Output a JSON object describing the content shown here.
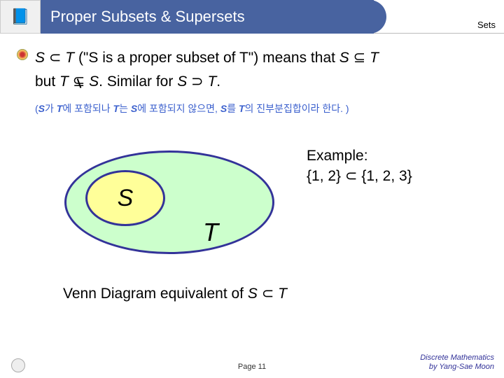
{
  "header": {
    "title": "Proper Subsets & Supersets",
    "section_label": "Sets"
  },
  "body": {
    "line1_a": "S",
    "line1_b": " ⊂ ",
    "line1_c": "T",
    "line1_d": " (\"S is a proper subset of T\") means that ",
    "line1_e": "S",
    "line1_f": " ⊆ ",
    "line1_g": "T",
    "line2_a": "but ",
    "line2_b": "T",
    "line2_c": " ",
    "line2_sub": "⊆",
    "line2_d": " ",
    "line2_e": "S",
    "line2_f": ".  Similar for ",
    "line2_g": "S",
    "line2_h": " ⊃ ",
    "line2_i": "T",
    "line2_j": "."
  },
  "korean": {
    "open": "(",
    "s": "S",
    "t1": "가 ",
    "tt": "T",
    "t2": "에 포함되나 ",
    "tt2": "T",
    "t3": "는 ",
    "s2": "S",
    "t4": "에 포함되지 않으면, ",
    "s3": "S",
    "t5": "를 ",
    "tt3": "T",
    "t6": "의 진부분집합이라 한다. )"
  },
  "diagram": {
    "s_label": "S",
    "t_label": "T",
    "example_l1": "Example:",
    "example_l2": "{1, 2} ⊂ {1, 2, 3}",
    "caption_a": "Venn Diagram equivalent of ",
    "caption_b": "S",
    "caption_c": " ⊂ ",
    "caption_d": "T",
    "colors": {
      "outer_fill": "#ccffcc",
      "inner_fill": "#ffff99",
      "border": "#333399"
    }
  },
  "footer": {
    "page": "Page 11",
    "right1": "Discrete Mathematics",
    "right2": "by Yang-Sae Moon"
  }
}
